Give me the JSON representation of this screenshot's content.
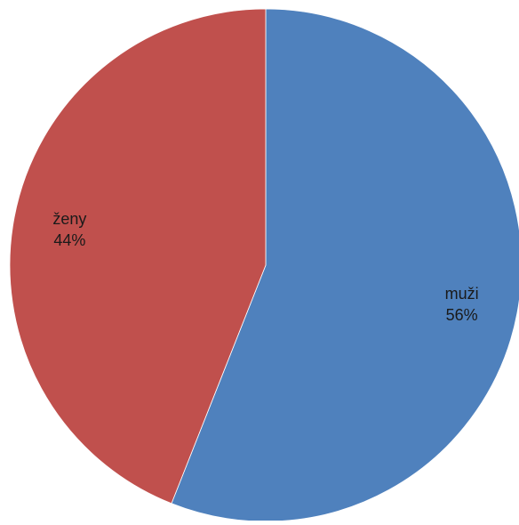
{
  "chart_data": {
    "type": "pie",
    "title": "",
    "start_angle_deg": 0,
    "direction": "clockwise",
    "slices": [
      {
        "label": "muži",
        "percent_label": "56%",
        "value": 56,
        "color": "#4f81bd"
      },
      {
        "label": "ženy",
        "percent_label": "44%",
        "value": 44,
        "color": "#c0504d"
      }
    ],
    "legend": "none",
    "data_labels": "inside"
  }
}
